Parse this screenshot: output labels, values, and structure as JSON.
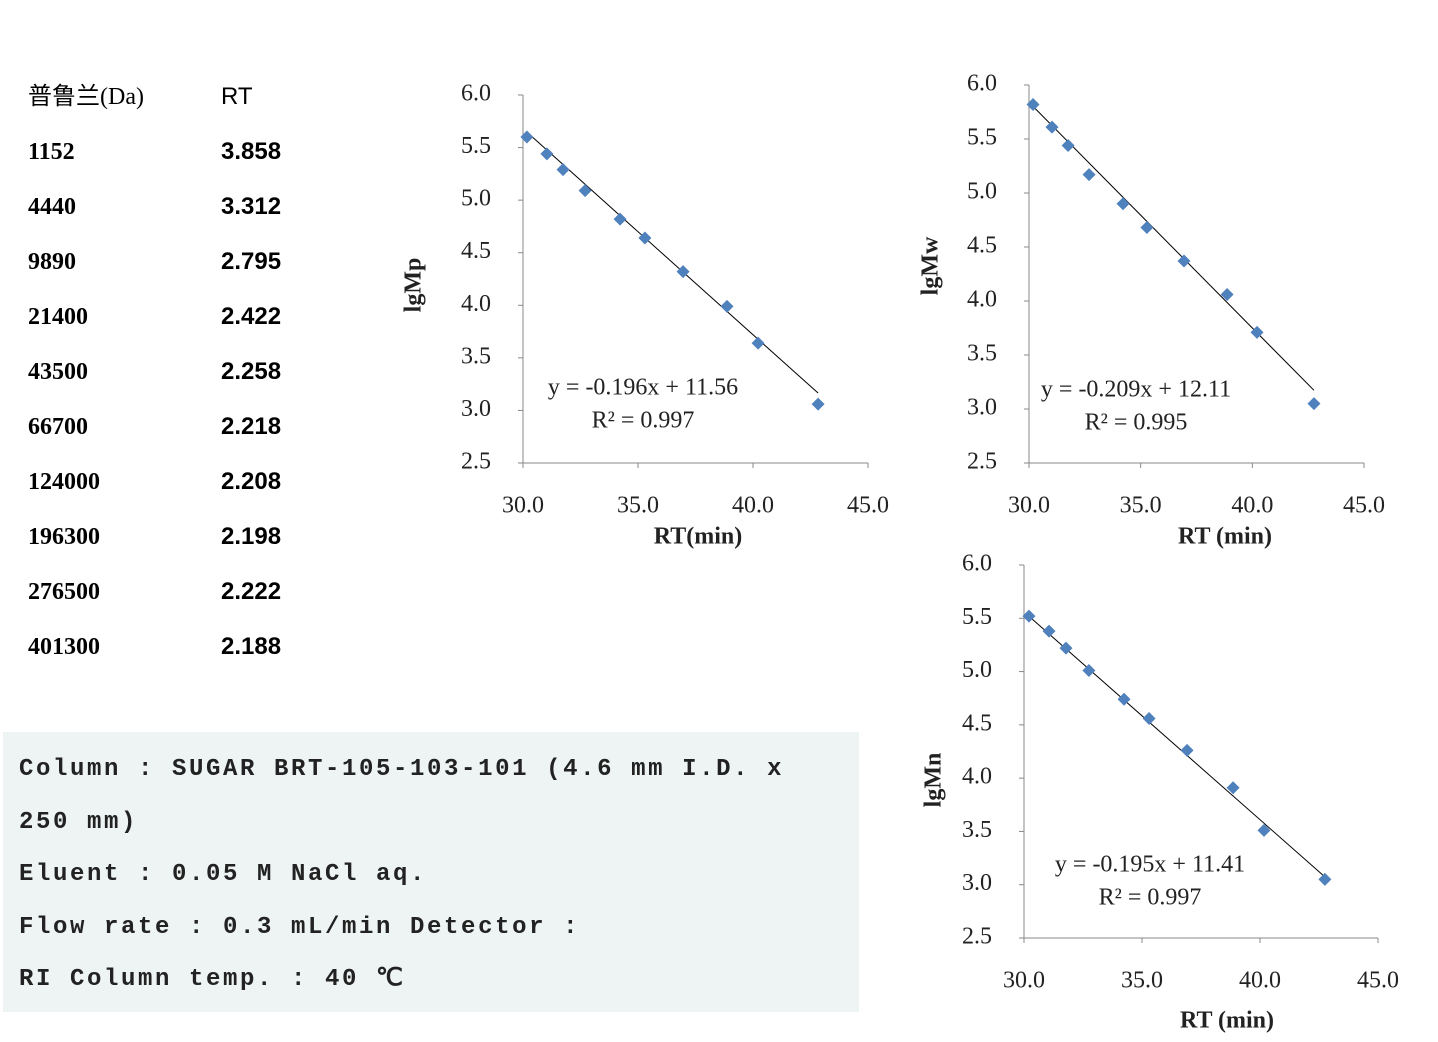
{
  "table": {
    "header": [
      "普鲁兰(Da)",
      "RT"
    ],
    "rows": [
      [
        1152,
        3.858
      ],
      [
        4440,
        3.312
      ],
      [
        9890,
        2.795
      ],
      [
        21400,
        2.422
      ],
      [
        43500,
        2.258
      ],
      [
        66700,
        2.218
      ],
      [
        124000,
        2.208
      ],
      [
        196300,
        2.198
      ],
      [
        276500,
        2.222
      ],
      [
        401300,
        2.188
      ]
    ]
  },
  "conditions": [
    "Column : SUGAR BRT-105-103-101  (4.6 mm I.D. x 250 mm)",
    "Eluent : 0.05 M NaCl aq.",
    "Flow rate : 0.3 mL/min Detector :",
    "RI Column temp. : 40 ℃"
  ],
  "chart_data": [
    {
      "type": "scatter",
      "x_label": "RT(min)",
      "y_label": "lgMp",
      "color": "#4f81bd",
      "x": [
        30.17,
        31.04,
        31.74,
        32.7,
        34.22,
        35.3,
        36.96,
        38.87,
        40.22,
        42.83
      ],
      "values": [
        5.6,
        5.44,
        5.29,
        5.09,
        4.82,
        4.64,
        4.32,
        3.99,
        3.64,
        3.06
      ],
      "xlim": [
        30,
        45
      ],
      "xticks": [
        {
          "value": 30,
          "label": "30.0"
        },
        {
          "value": 35,
          "label": "35.0"
        },
        {
          "value": 40,
          "label": "40.0"
        },
        {
          "value": 45,
          "label": "45.0"
        }
      ],
      "ylim": [
        2.5,
        6
      ],
      "yticks": [
        {
          "value": 2.5,
          "label": "2.5"
        },
        {
          "value": 3,
          "label": "3.0"
        },
        {
          "value": 3.5,
          "label": "3.5"
        },
        {
          "value": 4,
          "label": "4.0"
        },
        {
          "value": 4.5,
          "label": "4.5"
        },
        {
          "value": 5,
          "label": "5.0"
        },
        {
          "value": 5.5,
          "label": "5.5"
        },
        {
          "value": 6,
          "label": "6.0"
        }
      ],
      "trendline": {
        "slope": -0.196,
        "intercept": 11.56,
        "equation": "y = -0.196x + 11.56",
        "r2": "R² = 0.997"
      }
    },
    {
      "type": "scatter",
      "x_label": "RT (min)",
      "y_label": "lgMw",
      "color": "#4f81bd",
      "x": [
        30.18,
        31.03,
        31.75,
        32.69,
        34.21,
        35.28,
        36.94,
        38.87,
        40.21,
        42.76
      ],
      "values": [
        5.82,
        5.61,
        5.44,
        5.17,
        4.9,
        4.68,
        4.37,
        4.06,
        3.71,
        3.05
      ],
      "xlim": [
        30,
        45
      ],
      "xticks": [
        {
          "value": 30,
          "label": "30.0"
        },
        {
          "value": 35,
          "label": "35.0"
        },
        {
          "value": 40,
          "label": "40.0"
        },
        {
          "value": 45,
          "label": "45.0"
        }
      ],
      "ylim": [
        2.5,
        6
      ],
      "yticks": [
        {
          "value": 2.5,
          "label": "2.5"
        },
        {
          "value": 3,
          "label": "3.0"
        },
        {
          "value": 3.5,
          "label": "3.5"
        },
        {
          "value": 4,
          "label": "4.0"
        },
        {
          "value": 4.5,
          "label": "4.5"
        },
        {
          "value": 5,
          "label": "5.0"
        },
        {
          "value": 5.5,
          "label": "5.5"
        },
        {
          "value": 6,
          "label": "6.0"
        }
      ],
      "trendline": {
        "slope": -0.209,
        "intercept": 12.11,
        "equation": "y = -0.209x + 12.11",
        "r2": "R² = 0.995"
      }
    },
    {
      "type": "scatter",
      "x_label": "RT (min)",
      "y_label": "lgMn",
      "color": "#4f81bd",
      "x": [
        30.21,
        31.06,
        31.78,
        32.75,
        34.24,
        35.3,
        36.91,
        38.86,
        40.17,
        42.75
      ],
      "values": [
        5.52,
        5.38,
        5.22,
        5.01,
        4.74,
        4.56,
        4.26,
        3.91,
        3.51,
        3.05
      ],
      "xlim": [
        30,
        45
      ],
      "xticks": [
        {
          "value": 30,
          "label": "30.0"
        },
        {
          "value": 35,
          "label": "35.0"
        },
        {
          "value": 40,
          "label": "40.0"
        },
        {
          "value": 45,
          "label": "45.0"
        }
      ],
      "ylim": [
        2.5,
        6
      ],
      "yticks": [
        {
          "value": 2.5,
          "label": "2.5"
        },
        {
          "value": 3,
          "label": "3.0"
        },
        {
          "value": 3.5,
          "label": "3.5"
        },
        {
          "value": 4,
          "label": "4.0"
        },
        {
          "value": 4.5,
          "label": "4.5"
        },
        {
          "value": 5,
          "label": "5.0"
        },
        {
          "value": 5.5,
          "label": "5.5"
        },
        {
          "value": 6,
          "label": "6.0"
        }
      ],
      "trendline": {
        "slope": -0.195,
        "intercept": 11.41,
        "equation": "y = -0.195x + 11.41",
        "r2": "R² = 0.997"
      }
    }
  ]
}
